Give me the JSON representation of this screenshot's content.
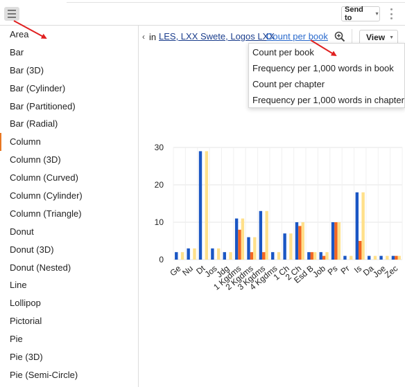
{
  "toolbar": {
    "menu_icon": "hamburger-menu-icon",
    "send_to_label": "Send to",
    "more_icon": "vertical-ellipsis-icon"
  },
  "sidebar": {
    "items": [
      {
        "label": "Area"
      },
      {
        "label": "Bar"
      },
      {
        "label": "Bar (3D)"
      },
      {
        "label": "Bar (Cylinder)"
      },
      {
        "label": "Bar (Partitioned)"
      },
      {
        "label": "Bar (Radial)"
      },
      {
        "label": "Column"
      },
      {
        "label": "Column (3D)"
      },
      {
        "label": "Column (Curved)"
      },
      {
        "label": "Column (Cylinder)"
      },
      {
        "label": "Column (Triangle)"
      },
      {
        "label": "Donut"
      },
      {
        "label": "Donut (3D)"
      },
      {
        "label": "Donut (Nested)"
      },
      {
        "label": "Line"
      },
      {
        "label": "Lollipop"
      },
      {
        "label": "Pictorial"
      },
      {
        "label": "Pie"
      },
      {
        "label": "Pie (3D)"
      },
      {
        "label": "Pie (Semi-Circle)"
      }
    ],
    "selected": "Column"
  },
  "breadcrumb": {
    "chevron": "‹",
    "prefix": "in",
    "resources": "LES, LXX Swete, Logos LXX",
    "measure": "Count per book",
    "view_label": "View"
  },
  "measure_menu": {
    "items": [
      "Count per book",
      "Frequency per 1,000 words in book",
      "Count per chapter",
      "Frequency per 1,000 words in chapter"
    ]
  },
  "colors": {
    "series_1": "#1a56c4",
    "series_2": "#f26522",
    "series_3": "#ffe08a",
    "active_marker": "#e87722",
    "annotation_arrow": "#e02020"
  },
  "chart_data": {
    "type": "bar",
    "categories": [
      "Ge",
      "Nu",
      "Dt",
      "Jos",
      "Jdg",
      "1 Kgdms",
      "2 Kgdms",
      "3 Kgdms",
      "4 Kgdms",
      "1 Ch",
      "2 Ch",
      "Esd B",
      "Job",
      "Ps",
      "Pr",
      "Is",
      "Da",
      "Joe",
      "Zec"
    ],
    "series": [
      {
        "values": [
          2,
          3,
          29,
          3,
          2,
          11,
          6,
          13,
          2,
          7,
          10,
          2,
          2,
          10,
          1,
          18,
          1,
          1,
          1
        ]
      },
      {
        "values": [
          0,
          0,
          0,
          0,
          0,
          8,
          2,
          2,
          0,
          0,
          9,
          2,
          1,
          10,
          0,
          5,
          0,
          0,
          1
        ]
      },
      {
        "values": [
          2,
          3,
          29,
          3,
          2,
          11,
          6,
          13,
          2,
          7,
          10,
          2,
          2,
          10,
          1,
          18,
          1,
          1,
          1
        ]
      }
    ],
    "ylim": [
      0,
      30
    ],
    "yticks": [
      0,
      10,
      20,
      30
    ],
    "grid": true,
    "legend": "none",
    "xlabel": "",
    "ylabel": "",
    "title": ""
  }
}
